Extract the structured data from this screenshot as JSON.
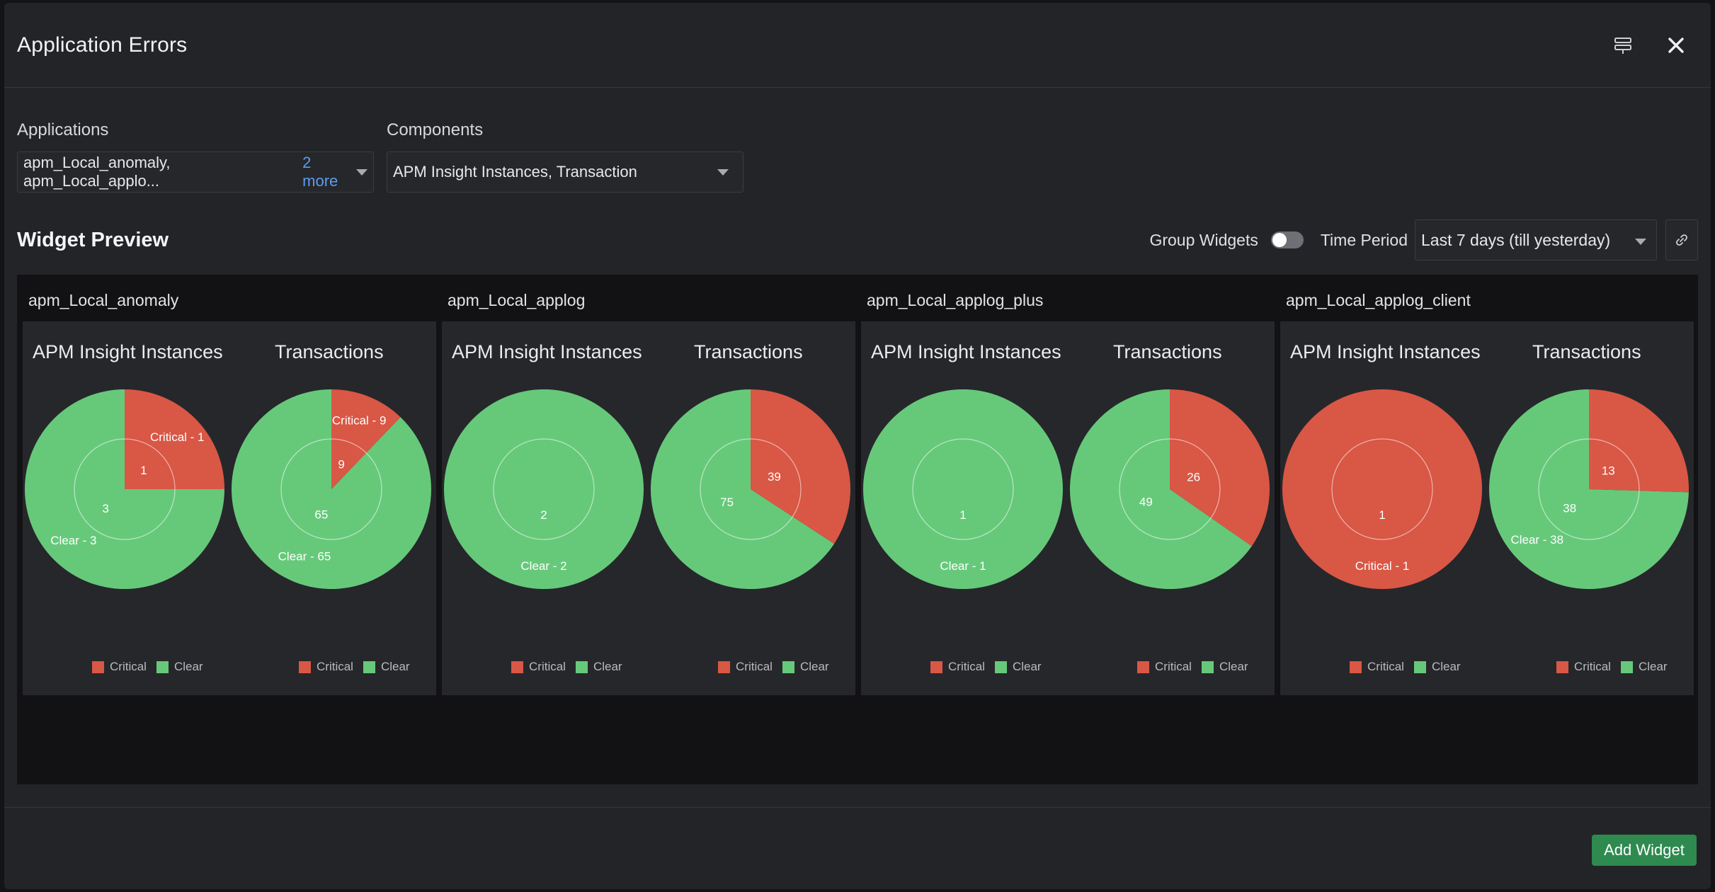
{
  "modal": {
    "title": "Application Errors"
  },
  "filters": {
    "applications": {
      "label": "Applications",
      "value": "apm_Local_anomaly, apm_Local_applo...",
      "more": "2 more"
    },
    "components": {
      "label": "Components",
      "value": "APM Insight Instances, Transaction"
    }
  },
  "preview": {
    "title": "Widget Preview",
    "group_widgets_label": "Group Widgets",
    "time_period_label": "Time Period",
    "time_period_value": "Last 7 days (till yesterday)"
  },
  "colors": {
    "critical": "#d95745",
    "clear": "#66c97a"
  },
  "legend": {
    "critical": "Critical",
    "clear": "Clear"
  },
  "widgets": [
    {
      "title": "apm_Local_anomaly",
      "charts": [
        {
          "title": "APM Insight Instances",
          "critical": 1,
          "clear": 3,
          "critical_label": "Critical - 1",
          "clear_label": "Clear - 3"
        },
        {
          "title": "Transactions",
          "critical": 9,
          "clear": 65,
          "critical_label": "Critical - 9",
          "clear_label": "Clear - 65"
        }
      ]
    },
    {
      "title": "apm_Local_applog",
      "charts": [
        {
          "title": "APM Insight Instances",
          "critical": 0,
          "clear": 2,
          "critical_label": "",
          "clear_label": "Clear - 2"
        },
        {
          "title": "Transactions",
          "critical": 39,
          "clear": 75,
          "critical_label": "",
          "clear_label": ""
        }
      ]
    },
    {
      "title": "apm_Local_applog_plus",
      "charts": [
        {
          "title": "APM Insight Instances",
          "critical": 0,
          "clear": 1,
          "critical_label": "",
          "clear_label": "Clear - 1"
        },
        {
          "title": "Transactions",
          "critical": 26,
          "clear": 49,
          "critical_label": "",
          "clear_label": ""
        }
      ]
    },
    {
      "title": "apm_Local_applog_client",
      "charts": [
        {
          "title": "APM Insight Instances",
          "critical": 1,
          "clear": 0,
          "critical_label": "Critical - 1",
          "clear_label": ""
        },
        {
          "title": "Transactions",
          "critical": 13,
          "clear": 38,
          "critical_label": "",
          "clear_label": "Clear - 38"
        }
      ]
    }
  ],
  "chart_data": [
    {
      "type": "pie",
      "title": "APM Insight Instances",
      "categories": [
        "Critical",
        "Clear"
      ],
      "values": [
        1,
        3
      ]
    },
    {
      "type": "pie",
      "title": "Transactions",
      "categories": [
        "Critical",
        "Clear"
      ],
      "values": [
        9,
        65
      ]
    },
    {
      "type": "pie",
      "title": "APM Insight Instances",
      "categories": [
        "Critical",
        "Clear"
      ],
      "values": [
        0,
        2
      ]
    },
    {
      "type": "pie",
      "title": "Transactions",
      "categories": [
        "Critical",
        "Clear"
      ],
      "values": [
        39,
        75
      ]
    },
    {
      "type": "pie",
      "title": "APM Insight Instances",
      "categories": [
        "Critical",
        "Clear"
      ],
      "values": [
        0,
        1
      ]
    },
    {
      "type": "pie",
      "title": "Transactions",
      "categories": [
        "Critical",
        "Clear"
      ],
      "values": [
        26,
        49
      ]
    },
    {
      "type": "pie",
      "title": "APM Insight Instances",
      "categories": [
        "Critical",
        "Clear"
      ],
      "values": [
        1,
        0
      ]
    },
    {
      "type": "pie",
      "title": "Transactions",
      "categories": [
        "Critical",
        "Clear"
      ],
      "values": [
        13,
        38
      ]
    }
  ],
  "footer": {
    "add_widget_label": "Add Widget"
  }
}
